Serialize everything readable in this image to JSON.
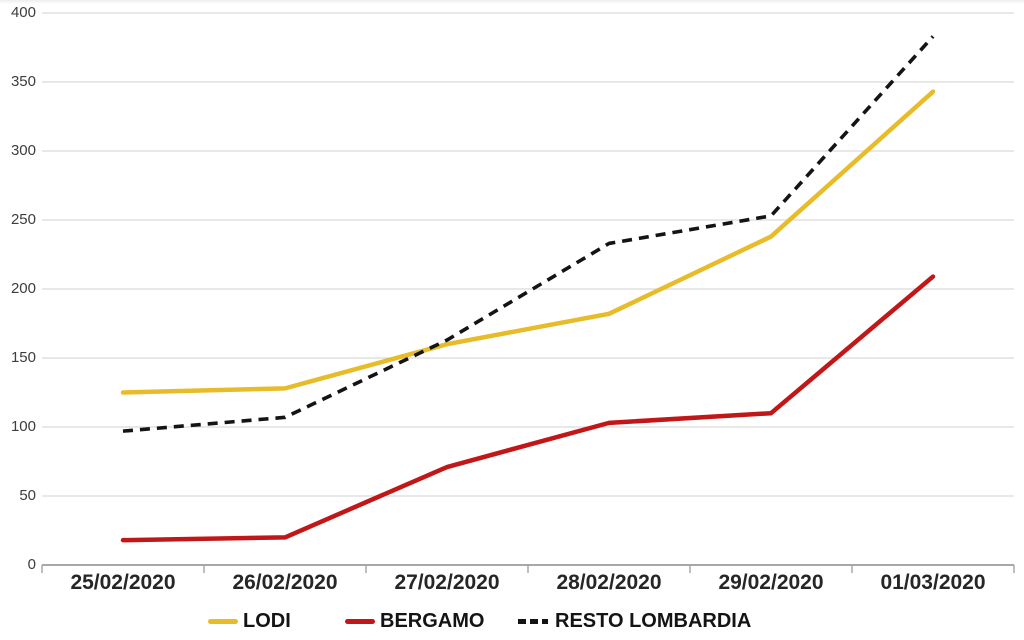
{
  "chart_data": {
    "type": "line",
    "categories": [
      "25/02/2020",
      "26/02/2020",
      "27/02/2020",
      "28/02/2020",
      "29/02/2020",
      "01/03/2020"
    ],
    "series": [
      {
        "name": "LODI",
        "color": "#E8BB28",
        "style": "solid",
        "width": 4.5,
        "values": [
          125,
          128,
          160,
          182,
          238,
          343
        ]
      },
      {
        "name": "BERGAMO",
        "color": "#C11718",
        "style": "solid",
        "width": 4.5,
        "values": [
          18,
          20,
          71,
          103,
          110,
          209
        ]
      },
      {
        "name": "RESTO LOMBARDIA",
        "color": "#141414",
        "style": "dashed",
        "width": 3.6,
        "values": [
          97,
          107,
          163,
          233,
          253,
          383
        ]
      }
    ],
    "ylim": [
      0,
      400
    ],
    "yticks": [
      0,
      50,
      100,
      150,
      200,
      250,
      300,
      350,
      400
    ],
    "grid": true,
    "legend_position": "bottom",
    "gridline_color": "#D9D9D9",
    "axis_color": "#9C9C9C"
  },
  "legend": {
    "items": [
      {
        "label": "LODI"
      },
      {
        "label": "BERGAMO"
      },
      {
        "label": "RESTO LOMBARDIA"
      }
    ]
  }
}
